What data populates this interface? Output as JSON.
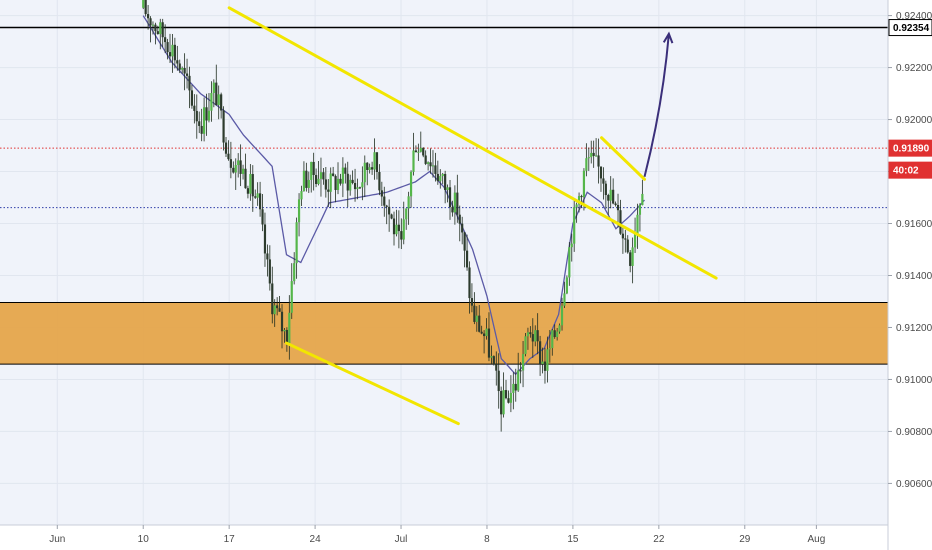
{
  "chart_data": {
    "type": "candlestick",
    "title": "",
    "ylim": [
      0.9044,
      0.9246
    ],
    "xlim_index": [
      -2,
      60
    ],
    "y_ticks": [
      "0.92400",
      "0.92200",
      "0.92000",
      "0.91800",
      "0.91600",
      "0.91400",
      "0.91200",
      "0.91000",
      "0.90800",
      "0.90600"
    ],
    "y_tick_values": [
      0.924,
      0.922,
      0.92,
      0.918,
      0.916,
      0.914,
      0.912,
      0.91,
      0.908,
      0.906
    ],
    "x_ticks": [
      {
        "label": "Jun",
        "index": 2
      },
      {
        "label": "10",
        "index": 8
      },
      {
        "label": "17",
        "index": 14
      },
      {
        "label": "24",
        "index": 20
      },
      {
        "label": "Jul",
        "index": 26
      },
      {
        "label": "8",
        "index": 32
      },
      {
        "label": "15",
        "index": 38
      },
      {
        "label": "22",
        "index": 44
      },
      {
        "label": "29",
        "index": 50
      },
      {
        "label": "Aug",
        "index": 55
      }
    ],
    "price_series": {
      "name": "",
      "x": [
        8,
        9,
        10,
        11,
        12,
        13,
        14,
        15,
        16,
        17,
        18,
        19,
        20,
        21,
        22,
        23,
        24,
        25,
        26,
        27,
        28,
        29,
        30,
        31,
        32,
        33,
        34,
        35,
        36,
        37,
        38,
        39,
        40,
        41,
        42,
        43
      ],
      "close": [
        0.9243,
        0.9235,
        0.9228,
        0.9214,
        0.9198,
        0.9212,
        0.9186,
        0.918,
        0.9168,
        0.913,
        0.9116,
        0.9176,
        0.918,
        0.9175,
        0.9178,
        0.9174,
        0.9186,
        0.9167,
        0.915,
        0.9192,
        0.9185,
        0.9175,
        0.9165,
        0.9125,
        0.9115,
        0.909,
        0.9098,
        0.912,
        0.9105,
        0.9122,
        0.916,
        0.9185,
        0.918,
        0.9165,
        0.9148,
        0.9181
      ]
    },
    "moving_average": {
      "x": [
        8,
        10,
        12,
        14,
        15,
        17,
        18,
        19,
        21,
        23,
        25,
        27,
        28,
        29,
        31,
        32,
        33,
        34,
        35,
        36,
        37,
        38,
        39,
        40,
        41,
        42,
        43
      ],
      "values": [
        0.924,
        0.9222,
        0.921,
        0.9202,
        0.9194,
        0.9182,
        0.9148,
        0.9145,
        0.9168,
        0.917,
        0.9172,
        0.9176,
        0.918,
        0.9174,
        0.915,
        0.9132,
        0.9108,
        0.9102,
        0.9108,
        0.9112,
        0.9125,
        0.916,
        0.9172,
        0.9168,
        0.9158,
        0.9163,
        0.9169
      ]
    },
    "levels": [
      {
        "value": 0.92354,
        "label": "0.92354",
        "color": "#000000",
        "style": "solid"
      },
      {
        "value": 0.9189,
        "label": "0.91890",
        "color": "#e03131",
        "style": "dotted"
      },
      {
        "value": 0.91661,
        "label": "",
        "color": "#2f3ea8",
        "style": "dotted"
      }
    ],
    "current_price_tag": {
      "label": "0.91890",
      "color": "#e03131"
    },
    "countdown_tag": {
      "label": "40:02",
      "color": "#e03131"
    },
    "zone": {
      "from": 0.91059,
      "to": 0.91296,
      "color": "#e5a54b",
      "label": ""
    },
    "annotations": [
      {
        "type": "trendline",
        "color": "#f2e600",
        "points": [
          [
            14,
            0.9243
          ],
          [
            48,
            0.9139
          ]
        ]
      },
      {
        "type": "trendline",
        "color": "#f2e600",
        "points": [
          [
            18,
            0.9114
          ],
          [
            30,
            0.9083
          ]
        ]
      },
      {
        "type": "trendline",
        "color": "#f2e600",
        "points": [
          [
            40,
            0.9193
          ],
          [
            43,
            0.9177
          ]
        ]
      },
      {
        "type": "arrow",
        "color": "#3b2f7a",
        "points": [
          [
            43,
            0.9178
          ],
          [
            44.7,
            0.9233
          ]
        ]
      }
    ]
  }
}
